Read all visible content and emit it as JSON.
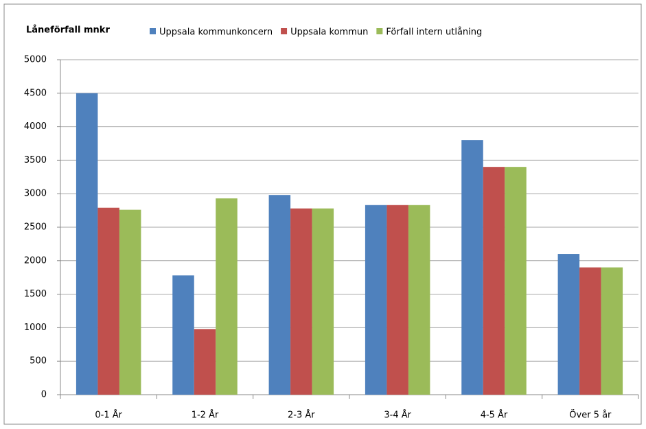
{
  "chart_data": {
    "type": "bar",
    "title": "Låneförfall mnkr",
    "categories": [
      "0-1 År",
      "1-2 År",
      "2-3 År",
      "3-4 År",
      "4-5 År",
      "Över 5 år"
    ],
    "series": [
      {
        "name": "Uppsala kommunkoncern",
        "color": "#4f81bd",
        "values": [
          4500,
          1780,
          2980,
          2830,
          3800,
          2100
        ]
      },
      {
        "name": "Uppsala kommun",
        "color": "#c0504d",
        "values": [
          2790,
          980,
          2780,
          2830,
          3400,
          1900
        ]
      },
      {
        "name": "Förfall intern utlåning",
        "color": "#9bbb59",
        "values": [
          2760,
          2930,
          2780,
          2830,
          3400,
          1900
        ]
      }
    ],
    "ylim": [
      0,
      5000
    ],
    "yticks": [
      0,
      500,
      1000,
      1500,
      2000,
      2500,
      3000,
      3500,
      4000,
      4500,
      5000
    ],
    "grid": true,
    "legend": "top"
  }
}
